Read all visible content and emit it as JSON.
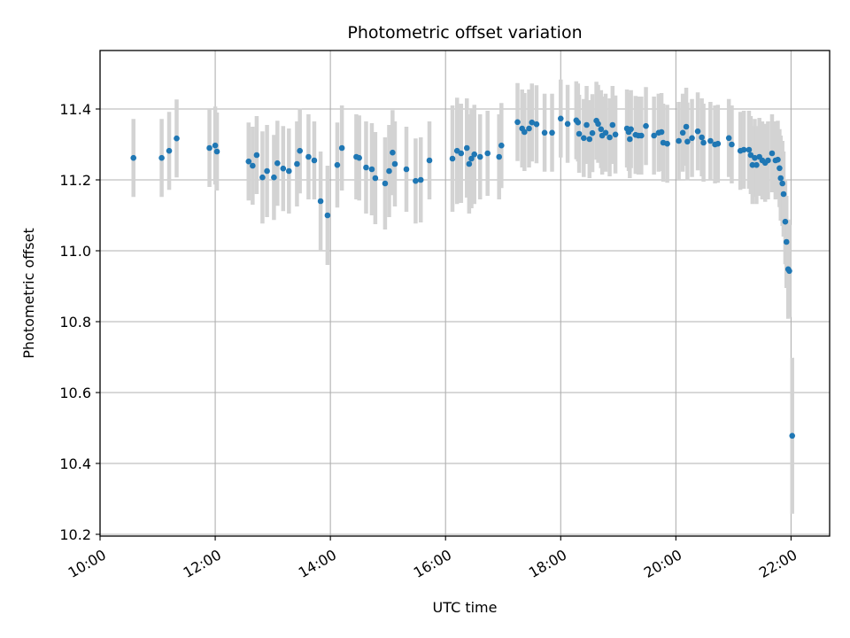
{
  "chart_data": {
    "type": "scatter",
    "title": "Photometric offset variation",
    "xlabel": "UTC time",
    "ylabel": "Photometric offset",
    "x_unit": "hours UTC",
    "xlim": [
      10.0,
      22.67
    ],
    "ylim": [
      10.195,
      11.565
    ],
    "grid": true,
    "colors": {
      "marker": "#1f77b4",
      "errorbar": "#d3d3d3",
      "grid": "#b0b0b0"
    },
    "x_ticks": [
      {
        "value": 10,
        "label": "10:00"
      },
      {
        "value": 12,
        "label": "12:00"
      },
      {
        "value": 14,
        "label": "14:00"
      },
      {
        "value": 16,
        "label": "16:00"
      },
      {
        "value": 18,
        "label": "18:00"
      },
      {
        "value": 20,
        "label": "20:00"
      },
      {
        "value": 22,
        "label": "22:00"
      }
    ],
    "y_ticks": [
      {
        "value": 10.2,
        "label": "10.2"
      },
      {
        "value": 10.4,
        "label": "10.4"
      },
      {
        "value": 10.6,
        "label": "10.6"
      },
      {
        "value": 10.8,
        "label": "10.8"
      },
      {
        "value": 11.0,
        "label": "11.0"
      },
      {
        "value": 11.2,
        "label": "11.2"
      },
      {
        "value": 11.4,
        "label": "11.4"
      }
    ],
    "points": [
      [
        10.58,
        11.262,
        0.11
      ],
      [
        11.07,
        11.262,
        0.11
      ],
      [
        11.2,
        11.282,
        0.11
      ],
      [
        11.33,
        11.317,
        0.11
      ],
      [
        11.9,
        11.29,
        0.11
      ],
      [
        12.0,
        11.297,
        0.11
      ],
      [
        12.03,
        11.28,
        0.11
      ],
      [
        12.58,
        11.252,
        0.11
      ],
      [
        12.65,
        11.24,
        0.11
      ],
      [
        12.72,
        11.27,
        0.11
      ],
      [
        12.82,
        11.207,
        0.13
      ],
      [
        12.9,
        11.225,
        0.13
      ],
      [
        13.02,
        11.207,
        0.12
      ],
      [
        13.08,
        11.247,
        0.12
      ],
      [
        13.18,
        11.232,
        0.12
      ],
      [
        13.28,
        11.225,
        0.12
      ],
      [
        13.42,
        11.245,
        0.12
      ],
      [
        13.47,
        11.282,
        0.12
      ],
      [
        13.62,
        11.265,
        0.12
      ],
      [
        13.72,
        11.255,
        0.11
      ],
      [
        13.83,
        11.14,
        0.14
      ],
      [
        13.95,
        11.1,
        0.14
      ],
      [
        14.12,
        11.242,
        0.12
      ],
      [
        14.2,
        11.29,
        0.12
      ],
      [
        14.45,
        11.265,
        0.12
      ],
      [
        14.5,
        11.262,
        0.12
      ],
      [
        14.62,
        11.235,
        0.13
      ],
      [
        14.72,
        11.23,
        0.13
      ],
      [
        14.78,
        11.205,
        0.13
      ],
      [
        14.95,
        11.19,
        0.13
      ],
      [
        15.02,
        11.225,
        0.13
      ],
      [
        15.08,
        11.277,
        0.12
      ],
      [
        15.12,
        11.245,
        0.12
      ],
      [
        15.32,
        11.23,
        0.12
      ],
      [
        15.48,
        11.197,
        0.12
      ],
      [
        15.57,
        11.2,
        0.12
      ],
      [
        15.72,
        11.255,
        0.11
      ],
      [
        16.12,
        11.26,
        0.15
      ],
      [
        16.2,
        11.282,
        0.15
      ],
      [
        16.27,
        11.275,
        0.14
      ],
      [
        16.37,
        11.29,
        0.14
      ],
      [
        16.41,
        11.245,
        0.14
      ],
      [
        16.45,
        11.26,
        0.14
      ],
      [
        16.5,
        11.272,
        0.14
      ],
      [
        16.6,
        11.265,
        0.12
      ],
      [
        16.73,
        11.275,
        0.12
      ],
      [
        16.93,
        11.265,
        0.12
      ],
      [
        16.97,
        11.297,
        0.12
      ],
      [
        17.25,
        11.363,
        0.11
      ],
      [
        17.33,
        11.345,
        0.11
      ],
      [
        17.37,
        11.335,
        0.11
      ],
      [
        17.45,
        11.345,
        0.11
      ],
      [
        17.5,
        11.362,
        0.11
      ],
      [
        17.58,
        11.357,
        0.11
      ],
      [
        17.72,
        11.333,
        0.11
      ],
      [
        17.85,
        11.333,
        0.11
      ],
      [
        18.0,
        11.373,
        0.11
      ],
      [
        18.12,
        11.358,
        0.11
      ],
      [
        18.27,
        11.368,
        0.11
      ],
      [
        18.3,
        11.362,
        0.11
      ],
      [
        18.32,
        11.33,
        0.11
      ],
      [
        18.4,
        11.318,
        0.11
      ],
      [
        18.45,
        11.355,
        0.11
      ],
      [
        18.5,
        11.315,
        0.11
      ],
      [
        18.55,
        11.332,
        0.11
      ],
      [
        18.62,
        11.367,
        0.11
      ],
      [
        18.65,
        11.358,
        0.11
      ],
      [
        18.7,
        11.343,
        0.11
      ],
      [
        18.72,
        11.325,
        0.11
      ],
      [
        18.78,
        11.333,
        0.11
      ],
      [
        18.85,
        11.32,
        0.11
      ],
      [
        18.9,
        11.355,
        0.11
      ],
      [
        18.95,
        11.328,
        0.11
      ],
      [
        19.15,
        11.345,
        0.11
      ],
      [
        19.18,
        11.335,
        0.11
      ],
      [
        19.2,
        11.315,
        0.11
      ],
      [
        19.22,
        11.343,
        0.11
      ],
      [
        19.3,
        11.327,
        0.11
      ],
      [
        19.35,
        11.325,
        0.11
      ],
      [
        19.4,
        11.325,
        0.11
      ],
      [
        19.48,
        11.352,
        0.11
      ],
      [
        19.62,
        11.325,
        0.11
      ],
      [
        19.7,
        11.333,
        0.11
      ],
      [
        19.75,
        11.335,
        0.11
      ],
      [
        19.78,
        11.305,
        0.11
      ],
      [
        19.85,
        11.302,
        0.11
      ],
      [
        20.05,
        11.31,
        0.11
      ],
      [
        20.12,
        11.333,
        0.11
      ],
      [
        20.18,
        11.35,
        0.11
      ],
      [
        20.2,
        11.308,
        0.11
      ],
      [
        20.28,
        11.318,
        0.11
      ],
      [
        20.38,
        11.337,
        0.11
      ],
      [
        20.45,
        11.32,
        0.11
      ],
      [
        20.48,
        11.305,
        0.11
      ],
      [
        20.6,
        11.31,
        0.11
      ],
      [
        20.68,
        11.3,
        0.11
      ],
      [
        20.73,
        11.302,
        0.11
      ],
      [
        20.92,
        11.318,
        0.11
      ],
      [
        20.97,
        11.3,
        0.11
      ],
      [
        21.12,
        11.282,
        0.11
      ],
      [
        21.18,
        11.285,
        0.11
      ],
      [
        21.27,
        11.285,
        0.11
      ],
      [
        21.3,
        11.27,
        0.11
      ],
      [
        21.33,
        11.242,
        0.11
      ],
      [
        21.37,
        11.262,
        0.11
      ],
      [
        21.4,
        11.242,
        0.11
      ],
      [
        21.45,
        11.265,
        0.11
      ],
      [
        21.5,
        11.255,
        0.11
      ],
      [
        21.55,
        11.248,
        0.11
      ],
      [
        21.6,
        11.255,
        0.11
      ],
      [
        21.67,
        11.275,
        0.11
      ],
      [
        21.73,
        11.255,
        0.11
      ],
      [
        21.77,
        11.257,
        0.11
      ],
      [
        21.8,
        11.233,
        0.11
      ],
      [
        21.82,
        11.205,
        0.12
      ],
      [
        21.85,
        11.19,
        0.12
      ],
      [
        21.87,
        11.16,
        0.12
      ],
      [
        21.9,
        11.082,
        0.12
      ],
      [
        21.92,
        11.025,
        0.13
      ],
      [
        21.95,
        10.948,
        0.14
      ],
      [
        21.97,
        10.943,
        0.13
      ],
      [
        22.02,
        10.478,
        0.22
      ]
    ]
  }
}
